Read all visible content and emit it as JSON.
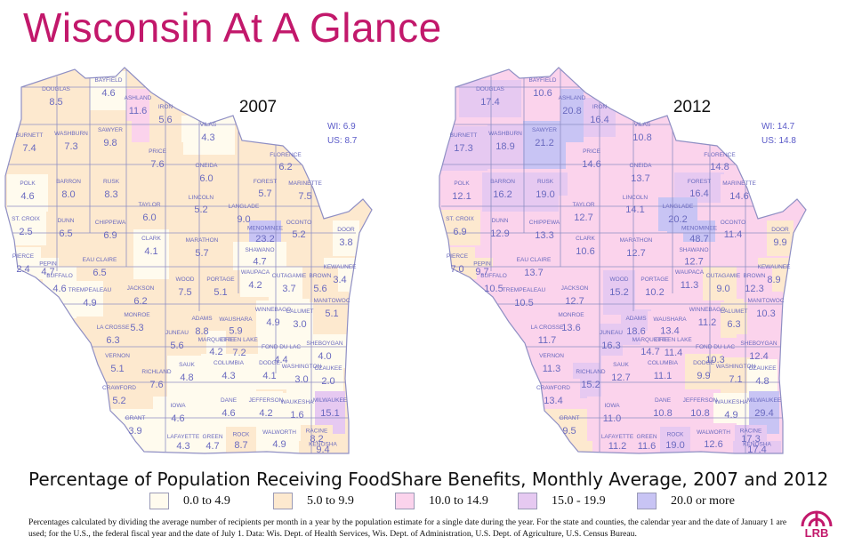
{
  "title": "Wisconsin At A Glance",
  "caption": "Percentage of Population Receiving FoodShare Benefits, Monthly Average, 2007 and 2012",
  "footnote": "Percentages calculated by dividing the average number of recipients per month in a year by the population estimate for a single date during the year. For the state and counties, the calendar year and the date of January 1 are used; for the U.S., the federal fiscal year and the date of July 1. Data: Wis. Dept. of Health Services, Wis. Dept. of Administration, U.S. Dept. of Agriculture, U.S. Census Bureau.",
  "logo_text": "LRB",
  "colors": {
    "title": "#c2186b",
    "county_label": "#6a6abf",
    "border": "#8f8fc4"
  },
  "legend": [
    {
      "label": "0.0 to 4.9",
      "color": "#fffbee"
    },
    {
      "label": "5.0 to 9.9",
      "color": "#fde9cf"
    },
    {
      "label": "10.0 to 14.9",
      "color": "#fbd3ec"
    },
    {
      "label": "15.0 - 19.9",
      "color": "#e6c9f1"
    },
    {
      "label": "20.0 or more",
      "color": "#c8c4f4"
    }
  ],
  "maps": [
    {
      "year": "2007",
      "wi_label": "WI:",
      "wi_value": "6.9",
      "us_label": "US:",
      "us_value": "8.7",
      "counties": [
        {
          "name": "DOUGLAS",
          "value": "8.5"
        },
        {
          "name": "BAYFIELD",
          "value": "4.6"
        },
        {
          "name": "ASHLAND",
          "value": "11.6"
        },
        {
          "name": "IRON",
          "value": "5.6"
        },
        {
          "name": "VILAS",
          "value": "4.3"
        },
        {
          "name": "BURNETT",
          "value": "7.4"
        },
        {
          "name": "WASHBURN",
          "value": "7.3"
        },
        {
          "name": "SAWYER",
          "value": "9.8"
        },
        {
          "name": "PRICE",
          "value": "7.6"
        },
        {
          "name": "ONEIDA",
          "value": "6.0"
        },
        {
          "name": "FLORENCE",
          "value": "6.2"
        },
        {
          "name": "FOREST",
          "value": "5.7"
        },
        {
          "name": "MARINETTE",
          "value": "7.5"
        },
        {
          "name": "POLK",
          "value": "4.6"
        },
        {
          "name": "BARRON",
          "value": "8.0"
        },
        {
          "name": "RUSK",
          "value": "8.3"
        },
        {
          "name": "LINCOLN",
          "value": "5.2"
        },
        {
          "name": "TAYLOR",
          "value": "6.0"
        },
        {
          "name": "LANGLADE",
          "value": "9.0"
        },
        {
          "name": "MENOMINEE",
          "value": "23.2"
        },
        {
          "name": "OCONTO",
          "value": "5.2"
        },
        {
          "name": "ST. CROIX",
          "value": "2.5"
        },
        {
          "name": "DUNN",
          "value": "6.5"
        },
        {
          "name": "CHIPPEWA",
          "value": "6.9"
        },
        {
          "name": "CLARK",
          "value": "4.1"
        },
        {
          "name": "MARATHON",
          "value": "5.7"
        },
        {
          "name": "SHAWANO",
          "value": "4.7"
        },
        {
          "name": "DOOR",
          "value": "3.8"
        },
        {
          "name": "PIERCE",
          "value": "2.4"
        },
        {
          "name": "PEPIN",
          "value": "4.7"
        },
        {
          "name": "EAU CLAIRE",
          "value": "6.5"
        },
        {
          "name": "KEWAUNEE",
          "value": "3.4"
        },
        {
          "name": "BUFFALO",
          "value": "4.6"
        },
        {
          "name": "TREMPEALEAU",
          "value": "4.9"
        },
        {
          "name": "JACKSON",
          "value": "6.2"
        },
        {
          "name": "WOOD",
          "value": "7.5"
        },
        {
          "name": "PORTAGE",
          "value": "5.1"
        },
        {
          "name": "WAUPACA",
          "value": "4.2"
        },
        {
          "name": "OUTAGAMIE",
          "value": "3.7"
        },
        {
          "name": "BROWN",
          "value": "5.6"
        },
        {
          "name": "MANITOWOC",
          "value": "5.1"
        },
        {
          "name": "LA CROSSE",
          "value": "6.3"
        },
        {
          "name": "MONROE",
          "value": "5.3"
        },
        {
          "name": "JUNEAU",
          "value": "5.6"
        },
        {
          "name": "ADAMS",
          "value": "8.8"
        },
        {
          "name": "WAUSHARA",
          "value": "5.9"
        },
        {
          "name": "WINNEBAGO",
          "value": "4.9"
        },
        {
          "name": "CALUMET",
          "value": "3.0"
        },
        {
          "name": "MARQUETTE",
          "value": "4.2"
        },
        {
          "name": "GREEN LAKE",
          "value": "7.2"
        },
        {
          "name": "FOND DU LAC",
          "value": "4.4"
        },
        {
          "name": "SHEBOYGAN",
          "value": "4.0"
        },
        {
          "name": "VERNON",
          "value": "5.1"
        },
        {
          "name": "RICHLAND",
          "value": "7.6"
        },
        {
          "name": "SAUK",
          "value": "4.8"
        },
        {
          "name": "COLUMBIA",
          "value": "4.3"
        },
        {
          "name": "DODGE",
          "value": "4.1"
        },
        {
          "name": "WASHINGTON",
          "value": "3.0"
        },
        {
          "name": "OZAUKEE",
          "value": "2.0"
        },
        {
          "name": "CRAWFORD",
          "value": "5.2"
        },
        {
          "name": "GRANT",
          "value": "3.9"
        },
        {
          "name": "IOWA",
          "value": "4.6"
        },
        {
          "name": "DANE",
          "value": "4.6"
        },
        {
          "name": "JEFFERSON",
          "value": "4.2"
        },
        {
          "name": "WAUKESHA",
          "value": "1.6"
        },
        {
          "name": "MILWAUKEE",
          "value": "15.1"
        },
        {
          "name": "LAFAYETTE",
          "value": "4.3"
        },
        {
          "name": "GREEN",
          "value": "4.7"
        },
        {
          "name": "ROCK",
          "value": "8.7"
        },
        {
          "name": "WALWORTH",
          "value": "4.9"
        },
        {
          "name": "RACINE",
          "value": "8.2"
        },
        {
          "name": "KENOSHA",
          "value": "9.4"
        }
      ]
    },
    {
      "year": "2012",
      "wi_label": "WI:",
      "wi_value": "14.7",
      "us_label": "US:",
      "us_value": "14.8",
      "counties": [
        {
          "name": "DOUGLAS",
          "value": "17.4"
        },
        {
          "name": "BAYFIELD",
          "value": "10.6"
        },
        {
          "name": "ASHLAND",
          "value": "20.8"
        },
        {
          "name": "IRON",
          "value": "16.4"
        },
        {
          "name": "VILAS",
          "value": "10.8"
        },
        {
          "name": "BURNETT",
          "value": "17.3"
        },
        {
          "name": "WASHBURN",
          "value": "18.9"
        },
        {
          "name": "SAWYER",
          "value": "21.2"
        },
        {
          "name": "PRICE",
          "value": "14.6"
        },
        {
          "name": "ONEIDA",
          "value": "13.7"
        },
        {
          "name": "FLORENCE",
          "value": "14.8"
        },
        {
          "name": "FOREST",
          "value": "16.4"
        },
        {
          "name": "MARINETTE",
          "value": "14.6"
        },
        {
          "name": "POLK",
          "value": "12.1"
        },
        {
          "name": "BARRON",
          "value": "16.2"
        },
        {
          "name": "RUSK",
          "value": "19.0"
        },
        {
          "name": "LINCOLN",
          "value": "14.1"
        },
        {
          "name": "TAYLOR",
          "value": "12.7"
        },
        {
          "name": "LANGLADE",
          "value": "20.2"
        },
        {
          "name": "MENOMINEE",
          "value": "48.7"
        },
        {
          "name": "OCONTO",
          "value": "11.4"
        },
        {
          "name": "ST. CROIX",
          "value": "6.9"
        },
        {
          "name": "DUNN",
          "value": "12.9"
        },
        {
          "name": "CHIPPEWA",
          "value": "13.3"
        },
        {
          "name": "CLARK",
          "value": "10.6"
        },
        {
          "name": "MARATHON",
          "value": "12.7"
        },
        {
          "name": "SHAWANO",
          "value": "12.7"
        },
        {
          "name": "DOOR",
          "value": "9.9"
        },
        {
          "name": "PIERCE",
          "value": "7.0"
        },
        {
          "name": "PEPIN",
          "value": "9.7"
        },
        {
          "name": "EAU CLAIRE",
          "value": "13.7"
        },
        {
          "name": "KEWAUNEE",
          "value": "8.9"
        },
        {
          "name": "BUFFALO",
          "value": "10.5"
        },
        {
          "name": "TREMPEALEAU",
          "value": "10.5"
        },
        {
          "name": "JACKSON",
          "value": "12.7"
        },
        {
          "name": "WOOD",
          "value": "15.2"
        },
        {
          "name": "PORTAGE",
          "value": "10.2"
        },
        {
          "name": "WAUPACA",
          "value": "11.3"
        },
        {
          "name": "OUTAGAMIE",
          "value": "9.0"
        },
        {
          "name": "BROWN",
          "value": "12.3"
        },
        {
          "name": "MANITOWOC",
          "value": "10.3"
        },
        {
          "name": "LA CROSSE",
          "value": "11.7"
        },
        {
          "name": "MONROE",
          "value": "13.6"
        },
        {
          "name": "JUNEAU",
          "value": "16.3"
        },
        {
          "name": "ADAMS",
          "value": "18.6"
        },
        {
          "name": "WAUSHARA",
          "value": "13.4"
        },
        {
          "name": "WINNEBAGO",
          "value": "11.2"
        },
        {
          "name": "CALUMET",
          "value": "6.3"
        },
        {
          "name": "MARQUETTE",
          "value": "14.7"
        },
        {
          "name": "GREEN LAKE",
          "value": "11.4"
        },
        {
          "name": "FOND DU LAC",
          "value": "10.3"
        },
        {
          "name": "SHEBOYGAN",
          "value": "12.4"
        },
        {
          "name": "VERNON",
          "value": "11.3"
        },
        {
          "name": "RICHLAND",
          "value": "15.2"
        },
        {
          "name": "SAUK",
          "value": "12.7"
        },
        {
          "name": "COLUMBIA",
          "value": "11.1"
        },
        {
          "name": "DODGE",
          "value": "9.9"
        },
        {
          "name": "WASHINGTON",
          "value": "7.1"
        },
        {
          "name": "OZAUKEE",
          "value": "4.8"
        },
        {
          "name": "CRAWFORD",
          "value": "13.4"
        },
        {
          "name": "GRANT",
          "value": "9.5"
        },
        {
          "name": "IOWA",
          "value": "11.0"
        },
        {
          "name": "DANE",
          "value": "10.8"
        },
        {
          "name": "JEFFERSON",
          "value": "10.8"
        },
        {
          "name": "WAUKESHA",
          "value": "4.9"
        },
        {
          "name": "MILWAUKEE",
          "value": "29.4"
        },
        {
          "name": "LAFAYETTE",
          "value": "11.2"
        },
        {
          "name": "GREEN",
          "value": "11.6"
        },
        {
          "name": "ROCK",
          "value": "19.0"
        },
        {
          "name": "WALWORTH",
          "value": "12.6"
        },
        {
          "name": "RACINE",
          "value": "17.3"
        },
        {
          "name": "KENOSHA",
          "value": "17.4"
        }
      ]
    }
  ]
}
